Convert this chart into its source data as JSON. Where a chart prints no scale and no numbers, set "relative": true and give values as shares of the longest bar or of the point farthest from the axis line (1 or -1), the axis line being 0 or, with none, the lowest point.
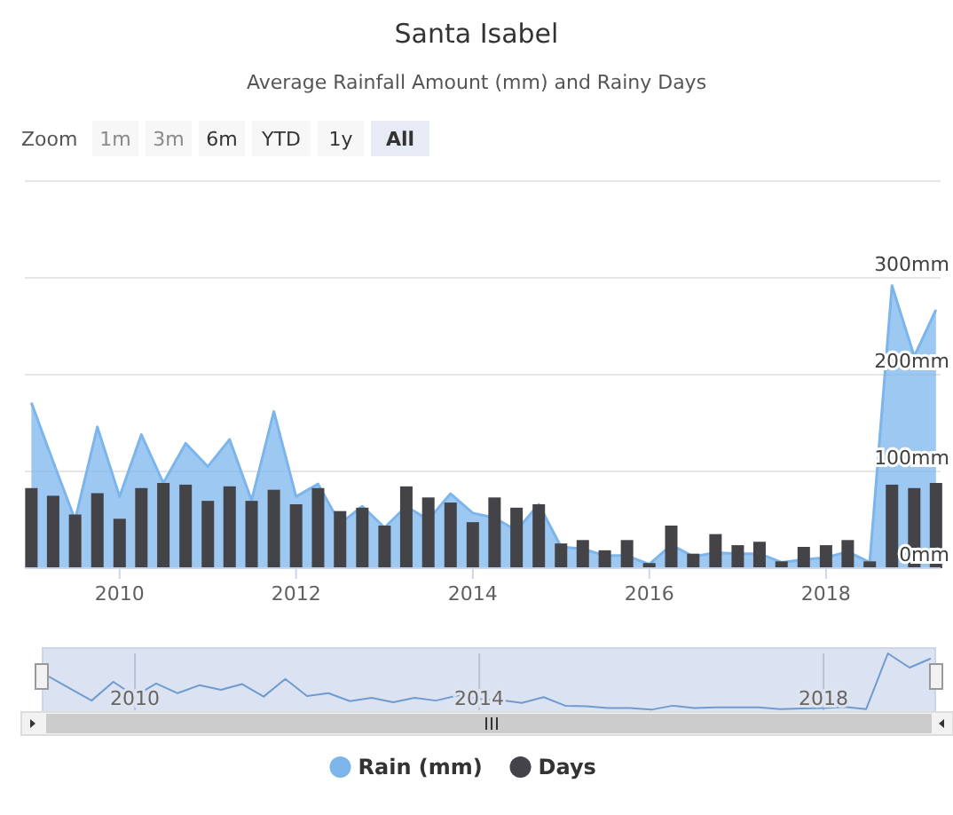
{
  "chart_data": [
    {
      "type": "area",
      "title": "Santa Isabel",
      "subtitle": "Average Rainfall Amount (mm) and Rainy Days",
      "annotations": [
        "Zoom",
        "1m",
        "3m",
        "6m",
        "YTD",
        "1y",
        "All"
      ],
      "x": [
        "2009-01",
        "2009-04",
        "2009-07",
        "2009-10",
        "2010-01",
        "2010-04",
        "2010-07",
        "2010-10",
        "2011-01",
        "2011-04",
        "2011-07",
        "2011-10",
        "2012-01",
        "2012-04",
        "2012-07",
        "2012-10",
        "2013-01",
        "2013-04",
        "2013-07",
        "2013-10",
        "2014-01",
        "2014-04",
        "2014-07",
        "2014-10",
        "2015-01",
        "2015-04",
        "2015-07",
        "2015-10",
        "2016-01",
        "2016-04",
        "2016-07",
        "2016-10",
        "2017-01",
        "2017-04",
        "2017-07",
        "2017-10",
        "2018-01",
        "2018-04",
        "2018-07",
        "2018-10",
        "2019-01",
        "2019-04"
      ],
      "series": [
        {
          "name": "Rain (mm)",
          "color": "#7cb5ec",
          "values": [
            171,
            110,
            50,
            146,
            74,
            138,
            88,
            129,
            105,
            133,
            70,
            162,
            74,
            87,
            46,
            64,
            42,
            64,
            50,
            77,
            57,
            52,
            39,
            66,
            22,
            20,
            13,
            13,
            4,
            24,
            12,
            16,
            15,
            15,
            6,
            9,
            11,
            17,
            6,
            292,
            219,
            267
          ]
        }
      ],
      "xlim": [
        "2008-12-05",
        "2019-04-20"
      ],
      "xticks": [
        "2010",
        "2012",
        "2014",
        "2016",
        "2018"
      ],
      "ylim": [
        0,
        400
      ],
      "yticks": [
        {
          "value": 0,
          "label": "0mm"
        },
        {
          "value": 100,
          "label": "100mm"
        },
        {
          "value": 200,
          "label": "200mm"
        },
        {
          "value": 300,
          "label": "300mm"
        },
        {
          "value": 400,
          "label": null
        }
      ],
      "grid": "y",
      "legend": "bottom"
    },
    {
      "type": "bar",
      "relative": true,
      "tick_labels": false,
      "legend": "bottom",
      "x": [
        "2009-01",
        "2009-04",
        "2009-07",
        "2009-10",
        "2010-01",
        "2010-04",
        "2010-07",
        "2010-10",
        "2011-01",
        "2011-04",
        "2011-07",
        "2011-10",
        "2012-01",
        "2012-04",
        "2012-07",
        "2012-10",
        "2013-01",
        "2013-04",
        "2013-07",
        "2013-10",
        "2014-01",
        "2014-04",
        "2014-07",
        "2014-10",
        "2015-01",
        "2015-04",
        "2015-07",
        "2015-10",
        "2016-01",
        "2016-04",
        "2016-07",
        "2016-10",
        "2017-01",
        "2017-04",
        "2017-07",
        "2017-10",
        "2018-01",
        "2018-04",
        "2018-07",
        "2018-10",
        "2019-01",
        "2019-04"
      ],
      "xlim": [
        "2008-12-05",
        "2019-04-20"
      ],
      "series": [
        {
          "name": "Days",
          "color": "#434348",
          "values": [
            0.94,
            0.85,
            0.63,
            0.88,
            0.58,
            0.94,
            1,
            0.98,
            0.79,
            0.96,
            0.79,
            0.92,
            0.75,
            0.94,
            0.67,
            0.71,
            0.5,
            0.96,
            0.83,
            0.77,
            0.54,
            0.83,
            0.71,
            0.75,
            0.29,
            0.33,
            0.21,
            0.33,
            0.06,
            0.5,
            0.17,
            0.4,
            0.27,
            0.31,
            0.08,
            0.25,
            0.27,
            0.33,
            0.08,
            0.98,
            0.94,
            1
          ]
        }
      ]
    },
    {
      "type": "line",
      "relative": true,
      "tick_labels": "x",
      "grid": "x",
      "x": [
        "2009-01",
        "2009-04",
        "2009-07",
        "2009-10",
        "2010-01",
        "2010-04",
        "2010-07",
        "2010-10",
        "2011-01",
        "2011-04",
        "2011-07",
        "2011-10",
        "2012-01",
        "2012-04",
        "2012-07",
        "2012-10",
        "2013-01",
        "2013-04",
        "2013-07",
        "2013-10",
        "2014-01",
        "2014-04",
        "2014-07",
        "2014-10",
        "2015-01",
        "2015-04",
        "2015-07",
        "2015-10",
        "2016-01",
        "2016-04",
        "2016-07",
        "2016-10",
        "2017-01",
        "2017-04",
        "2017-07",
        "2017-10",
        "2018-01",
        "2018-04",
        "2018-07",
        "2018-10",
        "2019-01",
        "2019-04"
      ],
      "xlim": [
        "2008-12-05",
        "2019-04-20"
      ],
      "xticks": [
        "2010",
        "2014",
        "2018"
      ],
      "series": [
        {
          "color": "#6f9bd0",
          "values": [
            0.59,
            0.38,
            0.17,
            0.5,
            0.25,
            0.47,
            0.3,
            0.44,
            0.36,
            0.46,
            0.24,
            0.55,
            0.25,
            0.3,
            0.16,
            0.22,
            0.14,
            0.22,
            0.17,
            0.26,
            0.2,
            0.18,
            0.13,
            0.23,
            0.08,
            0.07,
            0.04,
            0.04,
            0.01,
            0.08,
            0.04,
            0.05,
            0.05,
            0.05,
            0.02,
            0.03,
            0.04,
            0.06,
            0.02,
            1,
            0.75,
            0.91
          ]
        }
      ]
    }
  ]
}
